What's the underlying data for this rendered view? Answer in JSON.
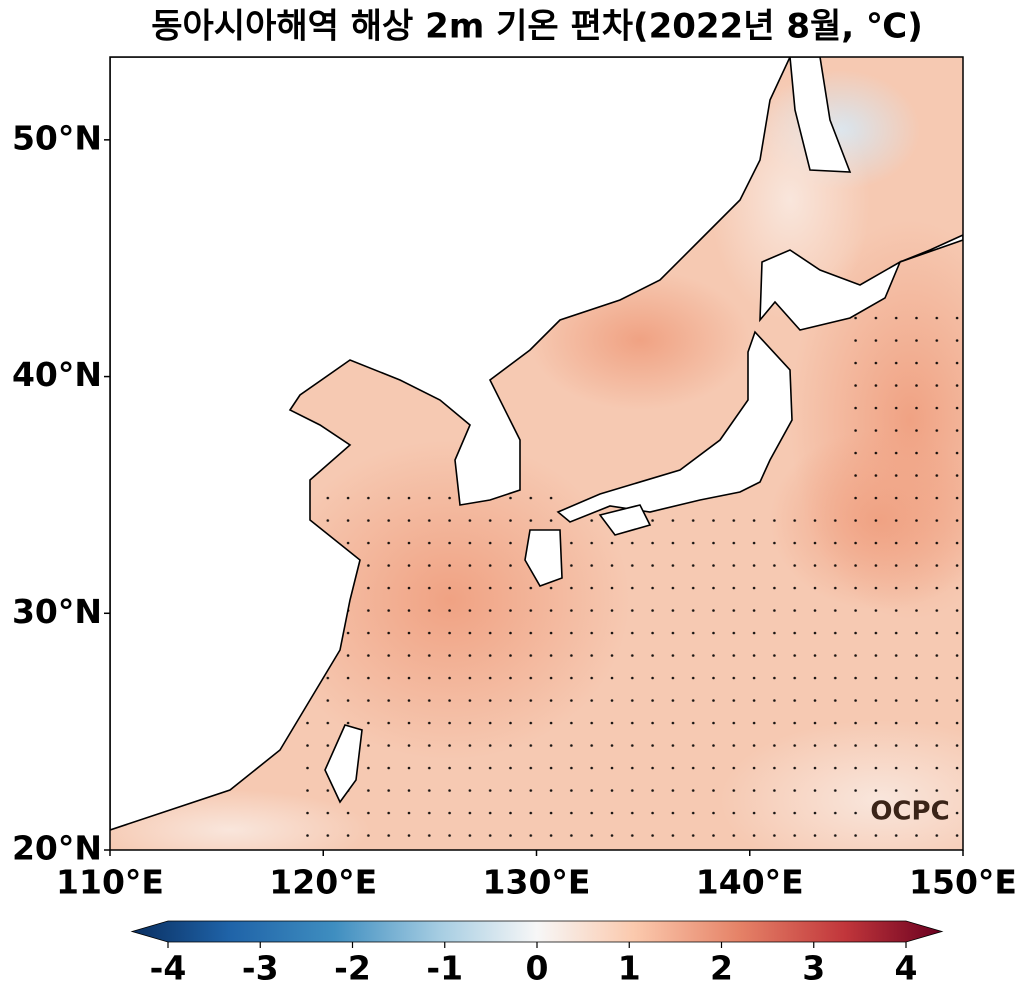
{
  "title": "동아시아해역 해상 2m 기온 편차(2022년 8월, ℃)",
  "map": {
    "xlim": [
      110,
      150
    ],
    "ylim": [
      20,
      53.5
    ],
    "xticks": [
      {
        "value": 110,
        "label": "110°E"
      },
      {
        "value": 120,
        "label": "120°E"
      },
      {
        "value": 130,
        "label": "130°E"
      },
      {
        "value": 140,
        "label": "140°E"
      },
      {
        "value": 150,
        "label": "150°E"
      }
    ],
    "yticks": [
      {
        "value": 20,
        "label": "20°N"
      },
      {
        "value": 30,
        "label": "30°N"
      },
      {
        "value": 40,
        "label": "40°N"
      },
      {
        "value": 50,
        "label": "50°N"
      }
    ],
    "logo": "OCPC"
  },
  "colorbar": {
    "range": [
      -4,
      4
    ],
    "ticks": [
      -4,
      -3,
      -2,
      -1,
      0,
      1,
      2,
      3,
      4
    ]
  }
}
